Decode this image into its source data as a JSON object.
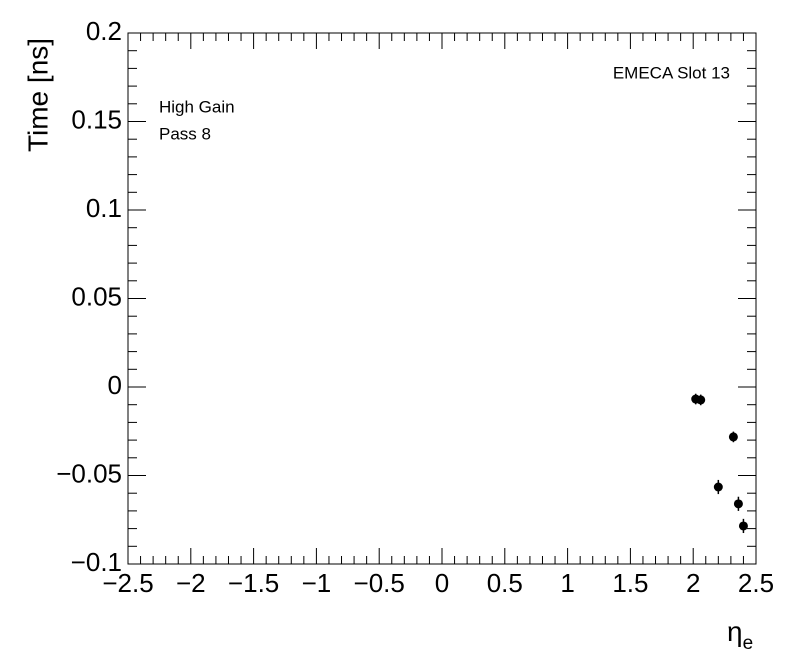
{
  "chart_data": {
    "type": "scatter",
    "y_label": "Time [ns]",
    "x_label": {
      "symbol": "η",
      "subscript": "e"
    },
    "annotations": [
      "EMECA Slot 13",
      "High Gain",
      "Pass 8"
    ],
    "series": [
      {
        "color": "#000000",
        "x": [
          2.2,
          2.02,
          2.06,
          2.32,
          2.36,
          2.4
        ],
        "values": [
          -0.0565,
          -0.0068,
          -0.0073,
          -0.0282,
          -0.066,
          -0.0785
        ],
        "errors": [
          0.004,
          0.003,
          0.003,
          0.003,
          0.004,
          0.004
        ]
      }
    ],
    "xlim": [
      -2.5,
      2.5
    ],
    "ylim": [
      -0.1,
      0.2
    ],
    "xticks": [
      {
        "value": -2.5,
        "label": "−2.5"
      },
      {
        "value": -2,
        "label": "−2"
      },
      {
        "value": -1.5,
        "label": "−1.5"
      },
      {
        "value": -1,
        "label": "−1"
      },
      {
        "value": -0.5,
        "label": "−0.5"
      },
      0,
      0.5,
      1,
      1.5,
      2,
      2.5
    ],
    "yticks": [
      {
        "value": -0.1,
        "label": "−0.1"
      },
      {
        "value": -0.05,
        "label": "−0.05"
      },
      0,
      0.05,
      0.1,
      0.15,
      0.2
    ]
  }
}
